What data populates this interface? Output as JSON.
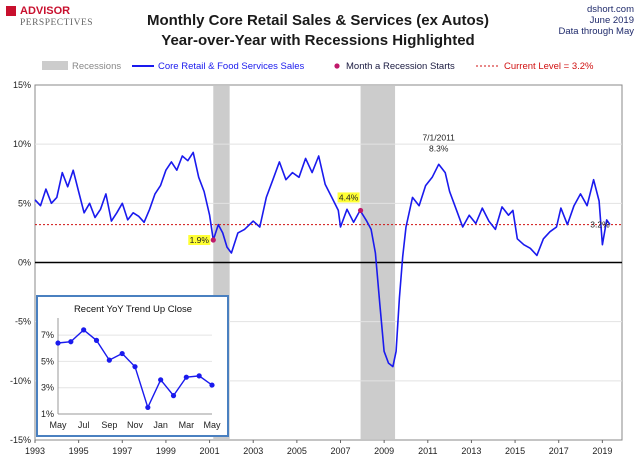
{
  "header": {
    "logo_line1": "ADVISOR",
    "logo_line2": "PERSPECTIVES",
    "title_line1": "Monthly Core Retail Sales & Services (ex Autos)",
    "title_line2": "Year-over-Year with Recessions Highlighted",
    "source_line1": "dshort.com",
    "source_line2": "June 2019",
    "source_line3": "Data through May"
  },
  "legend": {
    "recessions": "Recessions",
    "series": "Core Retail & Food Services Sales",
    "recession_start": "Month a Recession Starts",
    "current_level": "Current Level = 3.2%"
  },
  "colors": {
    "line": "#1a1aee",
    "recession": "#cccccc",
    "marker": "#c0186a",
    "current": "#d01010",
    "inset_border": "#4a80c0",
    "label_highlight": "#ffff33"
  },
  "chart_data": {
    "type": "line",
    "title": "Monthly Core Retail Sales & Services (ex Autos) Year-over-Year with Recessions Highlighted",
    "xlim": [
      1993.0,
      2019.9
    ],
    "ylim": [
      -15,
      15
    ],
    "x_ticks": [
      "1993",
      "1995",
      "1997",
      "1999",
      "2001",
      "2003",
      "2005",
      "2007",
      "2009",
      "2011",
      "2013",
      "2015",
      "2017",
      "2019"
    ],
    "y_ticks": [
      "15%",
      "10%",
      "5%",
      "0%",
      "-5%",
      "-10%",
      "-15%"
    ],
    "recessions": [
      [
        2001.17,
        2001.92
      ],
      [
        2007.92,
        2009.5
      ]
    ],
    "current_level": 3.2,
    "series": [
      {
        "name": "Core Retail & Food Services Sales",
        "points": [
          [
            1993.0,
            5.3
          ],
          [
            1993.25,
            4.8
          ],
          [
            1993.5,
            6.2
          ],
          [
            1993.75,
            5.0
          ],
          [
            1994.0,
            5.5
          ],
          [
            1994.25,
            7.6
          ],
          [
            1994.5,
            6.4
          ],
          [
            1994.75,
            7.8
          ],
          [
            1995.0,
            6.0
          ],
          [
            1995.25,
            4.2
          ],
          [
            1995.5,
            5.0
          ],
          [
            1995.75,
            3.8
          ],
          [
            1996.0,
            4.5
          ],
          [
            1996.25,
            5.8
          ],
          [
            1996.5,
            3.5
          ],
          [
            1996.75,
            4.2
          ],
          [
            1997.0,
            5.0
          ],
          [
            1997.25,
            3.6
          ],
          [
            1997.5,
            4.2
          ],
          [
            1997.75,
            3.9
          ],
          [
            1998.0,
            3.4
          ],
          [
            1998.25,
            4.5
          ],
          [
            1998.5,
            5.8
          ],
          [
            1998.75,
            6.5
          ],
          [
            1999.0,
            7.8
          ],
          [
            1999.25,
            8.5
          ],
          [
            1999.5,
            7.8
          ],
          [
            1999.75,
            9.0
          ],
          [
            2000.0,
            8.6
          ],
          [
            2000.25,
            9.3
          ],
          [
            2000.5,
            7.2
          ],
          [
            2000.75,
            6.0
          ],
          [
            2001.0,
            4.0
          ],
          [
            2001.17,
            1.9
          ],
          [
            2001.4,
            3.2
          ],
          [
            2001.6,
            2.5
          ],
          [
            2001.8,
            1.3
          ],
          [
            2002.0,
            0.8
          ],
          [
            2002.3,
            2.5
          ],
          [
            2002.6,
            2.8
          ],
          [
            2003.0,
            3.5
          ],
          [
            2003.3,
            3.0
          ],
          [
            2003.6,
            5.5
          ],
          [
            2003.9,
            7.0
          ],
          [
            2004.2,
            8.5
          ],
          [
            2004.5,
            7.0
          ],
          [
            2004.8,
            7.6
          ],
          [
            2005.1,
            7.2
          ],
          [
            2005.4,
            8.8
          ],
          [
            2005.7,
            7.6
          ],
          [
            2006.0,
            9.0
          ],
          [
            2006.3,
            6.6
          ],
          [
            2006.6,
            5.5
          ],
          [
            2006.9,
            4.4
          ],
          [
            2007.0,
            3.0
          ],
          [
            2007.3,
            4.5
          ],
          [
            2007.6,
            3.4
          ],
          [
            2007.9,
            4.4
          ],
          [
            2008.2,
            3.5
          ],
          [
            2008.4,
            2.8
          ],
          [
            2008.6,
            0.8
          ],
          [
            2008.8,
            -3.5
          ],
          [
            2009.0,
            -7.5
          ],
          [
            2009.2,
            -8.5
          ],
          [
            2009.4,
            -8.8
          ],
          [
            2009.55,
            -7.5
          ],
          [
            2009.7,
            -3.0
          ],
          [
            2009.85,
            0.5
          ],
          [
            2010.0,
            3.0
          ],
          [
            2010.3,
            5.5
          ],
          [
            2010.6,
            4.8
          ],
          [
            2010.9,
            6.5
          ],
          [
            2011.2,
            7.2
          ],
          [
            2011.5,
            8.3
          ],
          [
            2011.8,
            7.6
          ],
          [
            2012.0,
            6.0
          ],
          [
            2012.3,
            4.5
          ],
          [
            2012.6,
            3.0
          ],
          [
            2012.9,
            4.0
          ],
          [
            2013.2,
            3.3
          ],
          [
            2013.5,
            4.6
          ],
          [
            2013.8,
            3.5
          ],
          [
            2014.1,
            2.8
          ],
          [
            2014.4,
            4.7
          ],
          [
            2014.7,
            4.0
          ],
          [
            2014.9,
            4.4
          ],
          [
            2015.1,
            2.0
          ],
          [
            2015.4,
            1.5
          ],
          [
            2015.7,
            1.2
          ],
          [
            2016.0,
            0.6
          ],
          [
            2016.3,
            2.0
          ],
          [
            2016.6,
            2.6
          ],
          [
            2016.9,
            3.0
          ],
          [
            2017.1,
            4.6
          ],
          [
            2017.4,
            3.2
          ],
          [
            2017.7,
            4.8
          ],
          [
            2018.0,
            5.8
          ],
          [
            2018.3,
            4.8
          ],
          [
            2018.6,
            7.0
          ],
          [
            2018.85,
            5.2
          ],
          [
            2019.0,
            1.5
          ],
          [
            2019.2,
            3.6
          ],
          [
            2019.35,
            3.2
          ]
        ]
      }
    ],
    "recession_start_points": [
      [
        2001.17,
        1.9
      ],
      [
        2007.92,
        4.4
      ]
    ],
    "annotations": [
      {
        "label": "1.9%",
        "x": 2001.17,
        "y": 1.9,
        "highlight": true
      },
      {
        "label": "4.4%",
        "x": 2007.92,
        "y": 4.4,
        "highlight": true
      },
      {
        "label": "7/1/2011",
        "x": 2011.5,
        "y": 8.3,
        "highlight": false
      },
      {
        "label": "8.3%",
        "x": 2011.5,
        "y": 8.3,
        "highlight": false
      },
      {
        "label": "3.2%",
        "x": 2019.35,
        "y": 3.2,
        "highlight": false
      }
    ],
    "inset": {
      "title": "Recent  YoY Trend Up Close",
      "type": "line",
      "ylim": [
        1,
        8
      ],
      "y_ticks": [
        "7%",
        "5%",
        "3%",
        "1%"
      ],
      "x_ticks": [
        "May",
        "Jul",
        "Sep",
        "Nov",
        "Jan",
        "Mar",
        "May"
      ],
      "values": [
        6.4,
        6.5,
        7.4,
        6.6,
        5.1,
        5.6,
        4.6,
        1.5,
        3.6,
        2.4,
        3.8,
        3.9,
        3.2
      ]
    }
  }
}
